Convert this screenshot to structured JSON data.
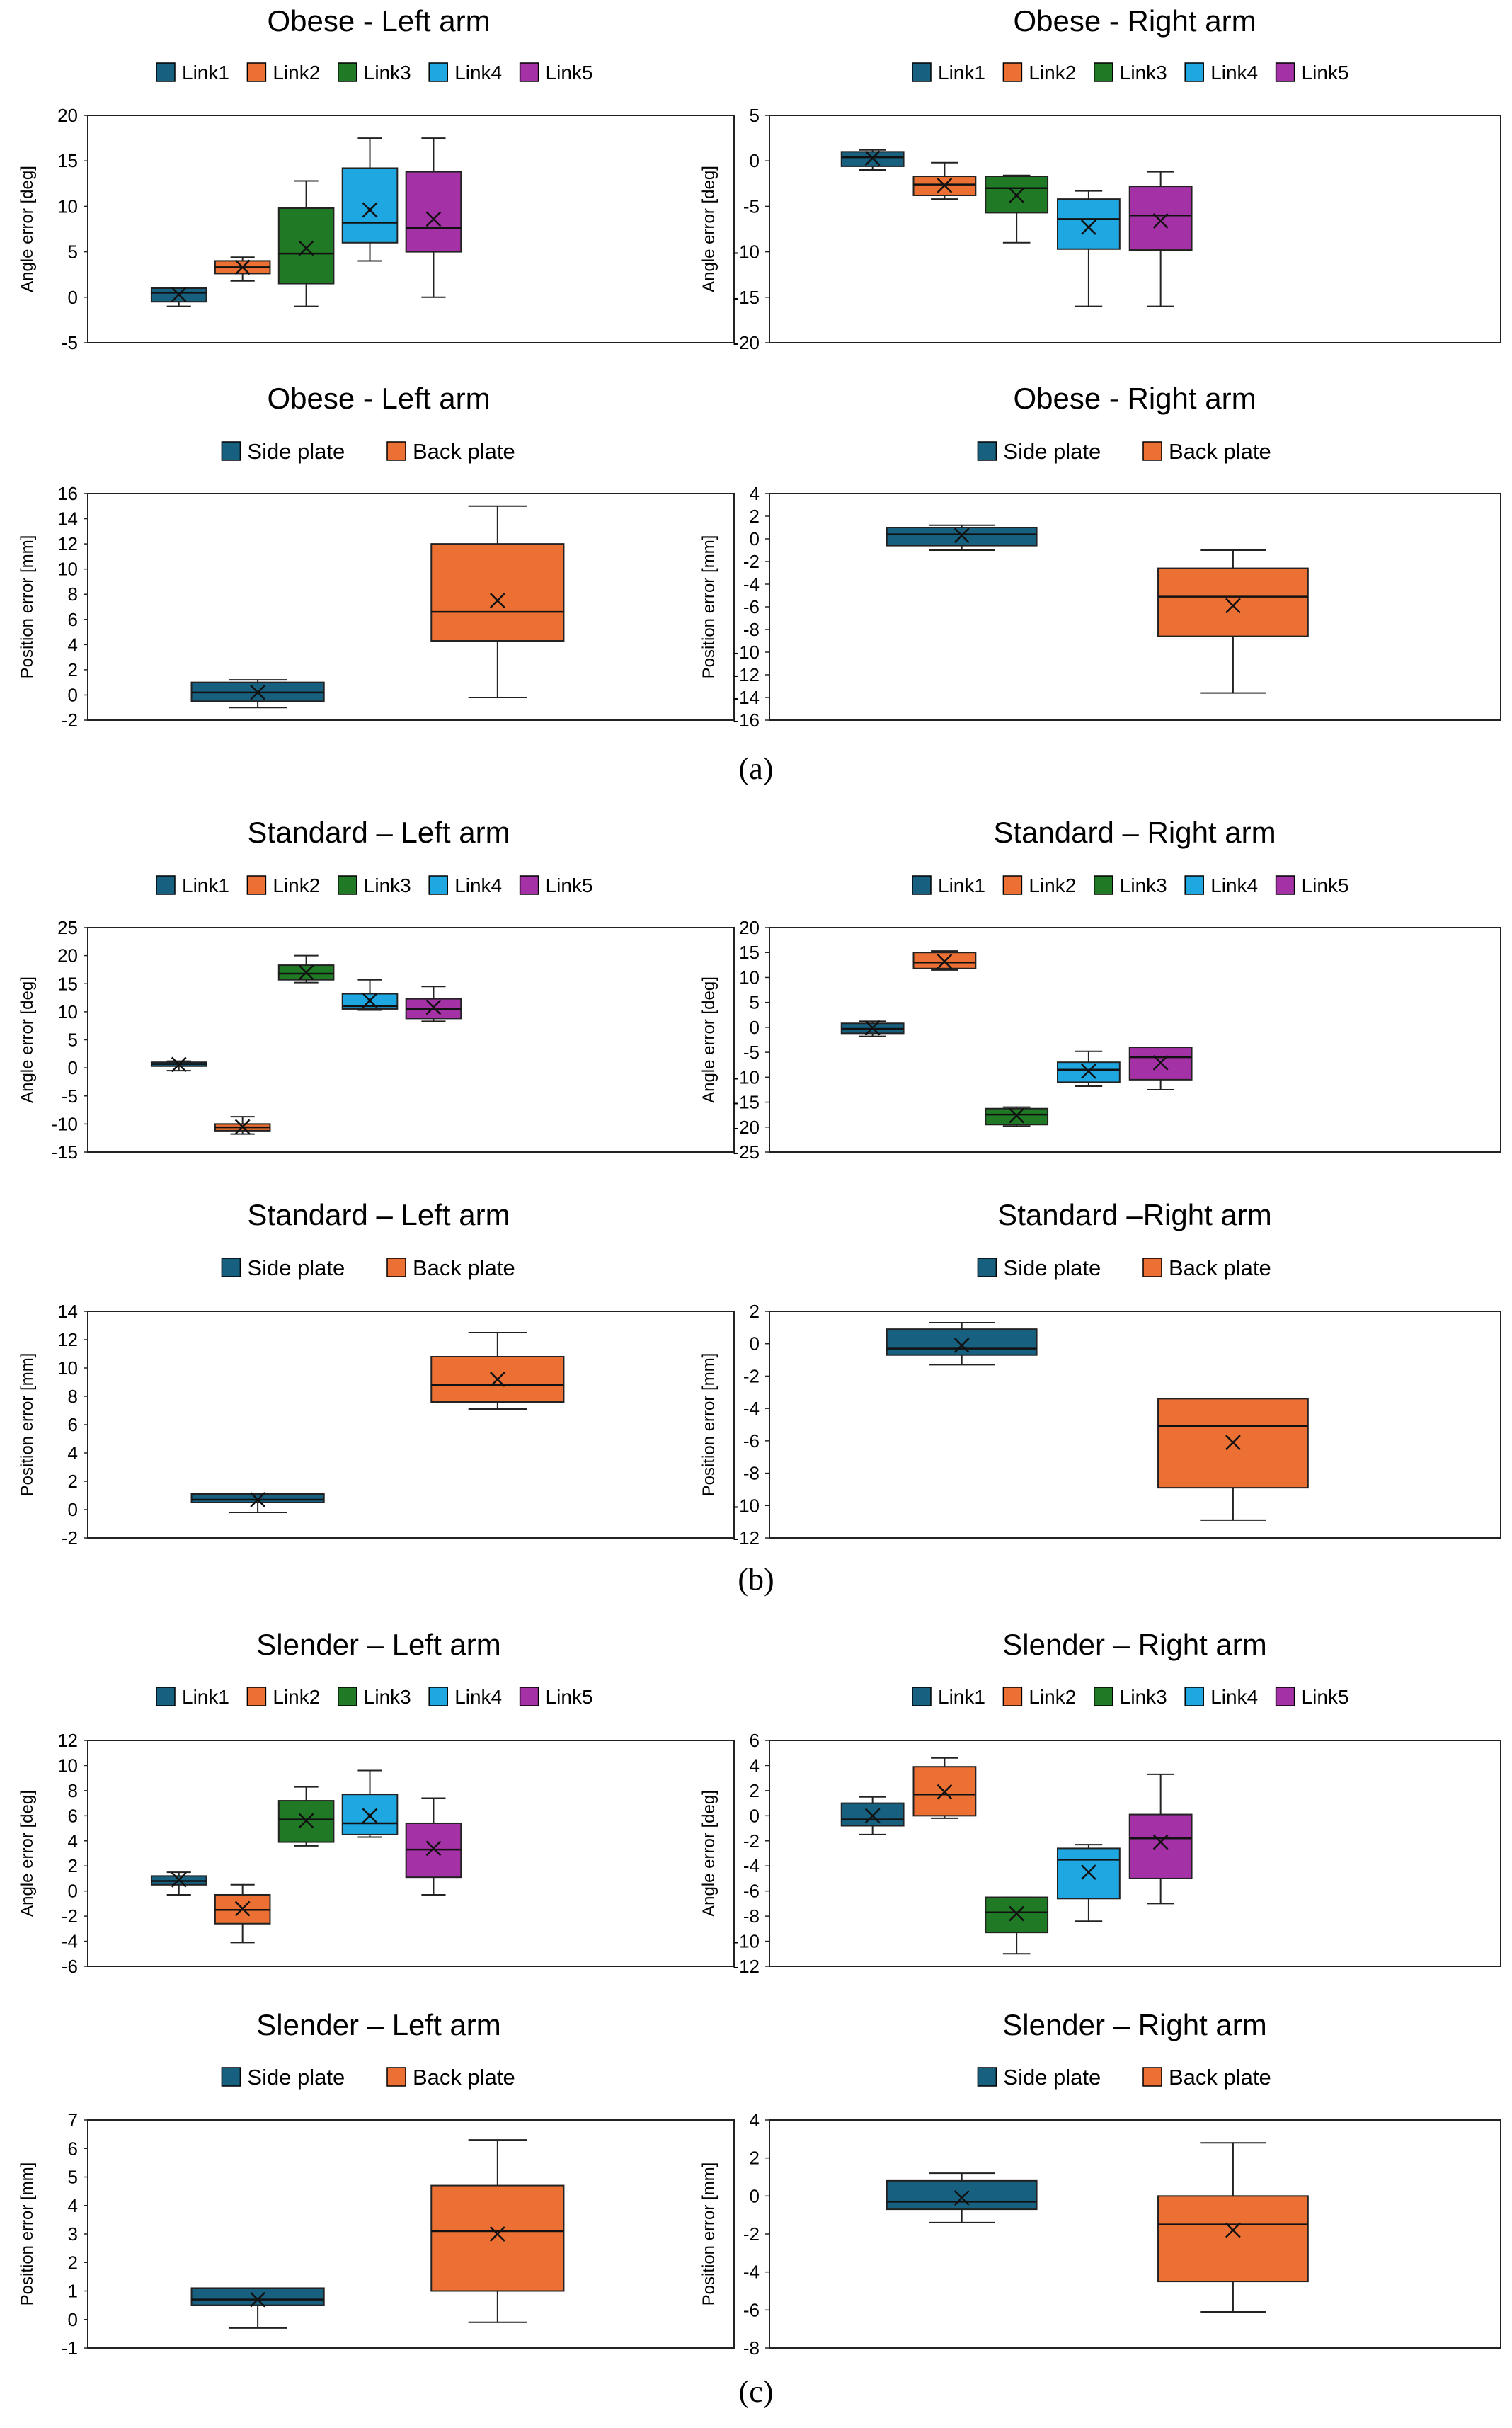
{
  "figure": {
    "panel_labels": [
      "(a)",
      "(b)",
      "(c)"
    ],
    "colors": {
      "Link1": "#17607f",
      "Link2": "#ec7033",
      "Link3": "#207a25",
      "Link4": "#1ea7e0",
      "Link5": "#a531a6",
      "Side plate": "#17607f",
      "Back plate": "#ec7033"
    }
  },
  "chart_data": [
    {
      "type": "box",
      "title": "Obese - Left arm",
      "ylabel": "Angle error [deg]",
      "ylim": [
        -5,
        20
      ],
      "ticks": [
        -5,
        0,
        5,
        10,
        15,
        20
      ],
      "legend": [
        "Link1",
        "Link2",
        "Link3",
        "Link4",
        "Link5"
      ],
      "boxes": [
        {
          "name": "Link1",
          "min": -1,
          "q1": -0.5,
          "median": 0.5,
          "q3": 1,
          "max": 1,
          "mean": 0.3
        },
        {
          "name": "Link2",
          "min": 1.8,
          "q1": 2.6,
          "median": 3.3,
          "q3": 4,
          "max": 4.4,
          "mean": 3.3
        },
        {
          "name": "Link3",
          "min": -1,
          "q1": 1.5,
          "median": 4.8,
          "q3": 9.8,
          "max": 12.8,
          "mean": 5.4
        },
        {
          "name": "Link4",
          "min": 4,
          "q1": 6,
          "median": 8.2,
          "q3": 14.2,
          "max": 17.5,
          "mean": 9.6
        },
        {
          "name": "Link5",
          "min": 0,
          "q1": 5,
          "median": 7.6,
          "q3": 13.8,
          "max": 17.5,
          "mean": 8.6
        }
      ]
    },
    {
      "type": "box",
      "title": "Obese - Right arm",
      "ylabel": "Angle error [deg]",
      "ylim": [
        -20,
        5
      ],
      "ticks": [
        -20,
        -15,
        -10,
        -5,
        0,
        5
      ],
      "legend": [
        "Link1",
        "Link2",
        "Link3",
        "Link4",
        "Link5"
      ],
      "boxes": [
        {
          "name": "Link1",
          "min": -1,
          "q1": -0.6,
          "median": 0.4,
          "q3": 1,
          "max": 1.2,
          "mean": 0.3
        },
        {
          "name": "Link2",
          "min": -4.2,
          "q1": -3.8,
          "median": -2.6,
          "q3": -1.7,
          "max": -0.2,
          "mean": -2.7
        },
        {
          "name": "Link3",
          "min": -9,
          "q1": -5.7,
          "median": -3,
          "q3": -1.7,
          "max": -1.6,
          "mean": -3.8
        },
        {
          "name": "Link4",
          "min": -16,
          "q1": -9.7,
          "median": -6.4,
          "q3": -4.2,
          "max": -3.3,
          "mean": -7.3
        },
        {
          "name": "Link5",
          "min": -16,
          "q1": -9.8,
          "median": -6,
          "q3": -2.8,
          "max": -1.2,
          "mean": -6.6
        }
      ]
    },
    {
      "type": "box",
      "title": "Obese - Left arm",
      "ylabel": "Position error [mm]",
      "ylim": [
        -2,
        16
      ],
      "ticks": [
        -2,
        0,
        2,
        4,
        6,
        8,
        10,
        12,
        14,
        16
      ],
      "legend": [
        "Side plate",
        "Back plate"
      ],
      "boxes": [
        {
          "name": "Side plate",
          "min": -1,
          "q1": -0.5,
          "median": 0.2,
          "q3": 1,
          "max": 1.2,
          "mean": 0.2
        },
        {
          "name": "Back plate",
          "min": -0.2,
          "q1": 4.3,
          "median": 6.6,
          "q3": 12,
          "max": 15,
          "mean": 7.5
        }
      ]
    },
    {
      "type": "box",
      "title": "Obese - Right arm",
      "ylabel": "Position error [mm]",
      "ylim": [
        -16,
        4
      ],
      "ticks": [
        -16,
        -14,
        -12,
        -10,
        -8,
        -6,
        -4,
        -2,
        0,
        2,
        4
      ],
      "legend": [
        "Side plate",
        "Back plate"
      ],
      "boxes": [
        {
          "name": "Side plate",
          "min": -1,
          "q1": -0.6,
          "median": 0.4,
          "q3": 1,
          "max": 1.2,
          "mean": 0.3
        },
        {
          "name": "Back plate",
          "min": -13.6,
          "q1": -8.6,
          "median": -5.1,
          "q3": -2.6,
          "max": -1,
          "mean": -5.9
        }
      ]
    },
    {
      "type": "box",
      "title": "Standard – Left arm",
      "ylabel": "Angle error [deg]",
      "ylim": [
        -15,
        25
      ],
      "ticks": [
        -15,
        -10,
        -5,
        0,
        5,
        10,
        15,
        20,
        25
      ],
      "legend": [
        "Link1",
        "Link2",
        "Link3",
        "Link4",
        "Link5"
      ],
      "boxes": [
        {
          "name": "Link1",
          "min": -0.5,
          "q1": 0.3,
          "median": 0.7,
          "q3": 1,
          "max": 1.2,
          "mean": 0.6
        },
        {
          "name": "Link2",
          "min": -11.8,
          "q1": -11.2,
          "median": -10.6,
          "q3": -10,
          "max": -8.7,
          "mean": -10.5
        },
        {
          "name": "Link3",
          "min": 15.2,
          "q1": 15.7,
          "median": 16.8,
          "q3": 18.3,
          "max": 20,
          "mean": 17
        },
        {
          "name": "Link4",
          "min": 10.3,
          "q1": 10.5,
          "median": 11,
          "q3": 13.2,
          "max": 15.7,
          "mean": 12
        },
        {
          "name": "Link5",
          "min": 8.3,
          "q1": 8.8,
          "median": 10.5,
          "q3": 12.3,
          "max": 14.5,
          "mean": 10.8
        }
      ]
    },
    {
      "type": "box",
      "title": "Standard – Right arm",
      "ylabel": "Angle error [deg]",
      "ylim": [
        -25,
        20
      ],
      "ticks": [
        -25,
        -20,
        -15,
        -10,
        -5,
        0,
        5,
        10,
        15,
        20
      ],
      "legend": [
        "Link1",
        "Link2",
        "Link3",
        "Link4",
        "Link5"
      ],
      "boxes": [
        {
          "name": "Link1",
          "min": -1.8,
          "q1": -1.2,
          "median": -0.3,
          "q3": 0.8,
          "max": 1.2,
          "mean": -0.1
        },
        {
          "name": "Link2",
          "min": 11.5,
          "q1": 11.8,
          "median": 13,
          "q3": 15,
          "max": 15.3,
          "mean": 13.2
        },
        {
          "name": "Link3",
          "min": -19.8,
          "q1": -19.5,
          "median": -17.5,
          "q3": -16.3,
          "max": -16,
          "mean": -17.7
        },
        {
          "name": "Link4",
          "min": -11.8,
          "q1": -11,
          "median": -8.5,
          "q3": -7,
          "max": -4.8,
          "mean": -8.8
        },
        {
          "name": "Link5",
          "min": -12.5,
          "q1": -10.5,
          "median": -6,
          "q3": -4,
          "max": -4,
          "mean": -7.1
        }
      ]
    },
    {
      "type": "box",
      "title": "Standard – Left arm",
      "ylabel": "Position error [mm]",
      "ylim": [
        -2,
        14
      ],
      "ticks": [
        -2,
        0,
        2,
        4,
        6,
        8,
        10,
        12,
        14
      ],
      "legend": [
        "Side plate",
        "Back plate"
      ],
      "boxes": [
        {
          "name": "Side plate",
          "min": -0.2,
          "q1": 0.5,
          "median": 0.7,
          "q3": 1.1,
          "max": 1.1,
          "mean": 0.7
        },
        {
          "name": "Back plate",
          "min": 7.1,
          "q1": 7.6,
          "median": 8.8,
          "q3": 10.8,
          "max": 12.5,
          "mean": 9.2
        }
      ]
    },
    {
      "type": "box",
      "title": "Standard –Right arm",
      "ylabel": "Position error [mm]",
      "ylim": [
        -12,
        2
      ],
      "ticks": [
        -12,
        -10,
        -8,
        -6,
        -4,
        -2,
        0,
        2
      ],
      "legend": [
        "Side plate",
        "Back plate"
      ],
      "boxes": [
        {
          "name": "Side plate",
          "min": -1.3,
          "q1": -0.7,
          "median": -0.3,
          "q3": 0.9,
          "max": 1.3,
          "mean": -0.1
        },
        {
          "name": "Back plate",
          "min": -10.9,
          "q1": -8.9,
          "median": -5.1,
          "q3": -3.4,
          "max": -3.4,
          "mean": -6.1
        }
      ]
    },
    {
      "type": "box",
      "title": "Slender – Left arm",
      "ylabel": "Angle error [deg]",
      "ylim": [
        -6,
        12
      ],
      "ticks": [
        -6,
        -4,
        -2,
        0,
        2,
        4,
        6,
        8,
        10,
        12
      ],
      "legend": [
        "Link1",
        "Link2",
        "Link3",
        "Link4",
        "Link5"
      ],
      "boxes": [
        {
          "name": "Link1",
          "min": -0.3,
          "q1": 0.5,
          "median": 0.8,
          "q3": 1.2,
          "max": 1.5,
          "mean": 0.9
        },
        {
          "name": "Link2",
          "min": -4.1,
          "q1": -2.6,
          "median": -1.5,
          "q3": -0.3,
          "max": 0.5,
          "mean": -1.4
        },
        {
          "name": "Link3",
          "min": 3.6,
          "q1": 3.9,
          "median": 5.7,
          "q3": 7.2,
          "max": 8.3,
          "mean": 5.6
        },
        {
          "name": "Link4",
          "min": 4.3,
          "q1": 4.5,
          "median": 5.4,
          "q3": 7.7,
          "max": 9.6,
          "mean": 6
        },
        {
          "name": "Link5",
          "min": -0.3,
          "q1": 1.1,
          "median": 3.3,
          "q3": 5.4,
          "max": 7.4,
          "mean": 3.4
        }
      ]
    },
    {
      "type": "box",
      "title": "Slender – Right arm",
      "ylabel": "Angle error [deg]",
      "ylim": [
        -12,
        6
      ],
      "ticks": [
        -12,
        -10,
        -8,
        -6,
        -4,
        -2,
        0,
        2,
        4,
        6
      ],
      "legend": [
        "Link1",
        "Link2",
        "Link3",
        "Link4",
        "Link5"
      ],
      "boxes": [
        {
          "name": "Link1",
          "min": -1.5,
          "q1": -0.8,
          "median": -0.3,
          "q3": 1,
          "max": 1.5,
          "mean": 0
        },
        {
          "name": "Link2",
          "min": -0.2,
          "q1": 0,
          "median": 1.7,
          "q3": 3.9,
          "max": 4.6,
          "mean": 1.9
        },
        {
          "name": "Link3",
          "min": -11,
          "q1": -9.3,
          "median": -7.7,
          "q3": -6.5,
          "max": -6.5,
          "mean": -7.8
        },
        {
          "name": "Link4",
          "min": -8.4,
          "q1": -6.6,
          "median": -3.5,
          "q3": -2.6,
          "max": -2.3,
          "mean": -4.5
        },
        {
          "name": "Link5",
          "min": -7,
          "q1": -5,
          "median": -1.8,
          "q3": 0.1,
          "max": 3.3,
          "mean": -2.1
        }
      ]
    },
    {
      "type": "box",
      "title": "Slender – Left arm",
      "ylabel": "Position error [mm]",
      "ylim": [
        -1,
        7
      ],
      "ticks": [
        -1,
        0,
        1,
        2,
        3,
        4,
        5,
        6,
        7
      ],
      "legend": [
        "Side plate",
        "Back plate"
      ],
      "boxes": [
        {
          "name": "Side plate",
          "min": -0.3,
          "q1": 0.5,
          "median": 0.7,
          "q3": 1.1,
          "max": 1.1,
          "mean": 0.7
        },
        {
          "name": "Back plate",
          "min": -0.1,
          "q1": 1,
          "median": 3.1,
          "q3": 4.7,
          "max": 6.3,
          "mean": 3
        }
      ]
    },
    {
      "type": "box",
      "title": "Slender – Right arm",
      "ylabel": "Position error [mm]",
      "ylim": [
        -8,
        4
      ],
      "ticks": [
        -8,
        -6,
        -4,
        -2,
        0,
        2,
        4
      ],
      "legend": [
        "Side plate",
        "Back plate"
      ],
      "boxes": [
        {
          "name": "Side plate",
          "min": -1.4,
          "q1": -0.7,
          "median": -0.3,
          "q3": 0.8,
          "max": 1.2,
          "mean": -0.1
        },
        {
          "name": "Back plate",
          "min": -6.1,
          "q1": -4.5,
          "median": -1.5,
          "q3": 0,
          "max": 2.8,
          "mean": -1.8
        }
      ]
    }
  ]
}
